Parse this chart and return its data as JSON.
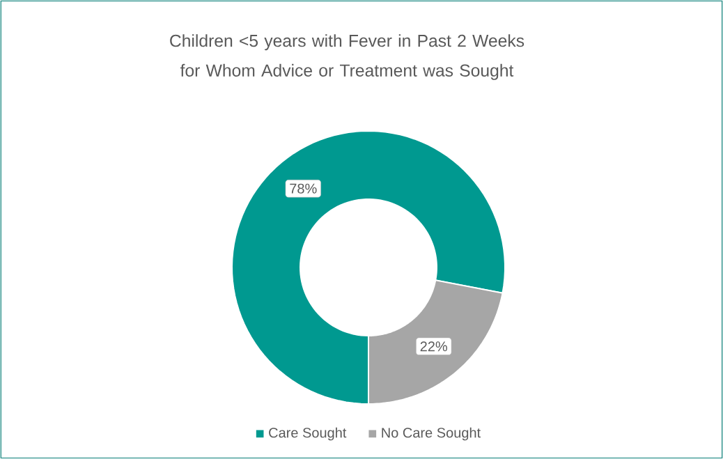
{
  "chart_data": {
    "type": "donut",
    "title": "Children <5 years with Fever in Past 2 Weeks for Whom Advice or Treatment was Sought",
    "categories": [
      "Care Sought",
      "No Care Sought"
    ],
    "values": [
      78,
      22
    ],
    "colors": [
      "#009990",
      "#a6a6a6"
    ],
    "value_labels": [
      "78%",
      "22%"
    ],
    "legend": "bottom"
  }
}
